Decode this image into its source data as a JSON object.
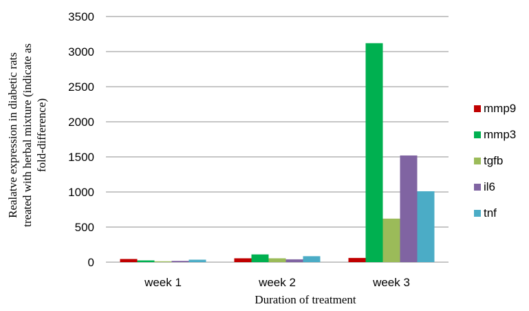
{
  "chart_data": {
    "type": "bar",
    "categories": [
      "week 1",
      "week 2",
      "week 3"
    ],
    "series": [
      {
        "name": "mmp9",
        "color": "#c00000",
        "values": [
          45,
          55,
          60
        ]
      },
      {
        "name": "mmp3",
        "color": "#00b050",
        "values": [
          25,
          110,
          3120
        ]
      },
      {
        "name": "tgfb",
        "color": "#9bbb59",
        "values": [
          12,
          55,
          620
        ]
      },
      {
        "name": "il6",
        "color": "#8064a2",
        "values": [
          18,
          40,
          1520
        ]
      },
      {
        "name": "tnf",
        "color": "#4bacc6",
        "values": [
          35,
          85,
          1010
        ]
      }
    ],
    "yticks": [
      "0",
      "500",
      "1000",
      "1500",
      "2000",
      "2500",
      "3000",
      "3500"
    ],
    "ylim": [
      0,
      3500
    ],
    "ylabel_lines": [
      "Realatve expression in diabetic  rats",
      "treated with herbal mixture (indicate as",
      "fold-difference)"
    ],
    "xlabel": "Duration of treatment",
    "grid": true,
    "legend_position": "right"
  }
}
